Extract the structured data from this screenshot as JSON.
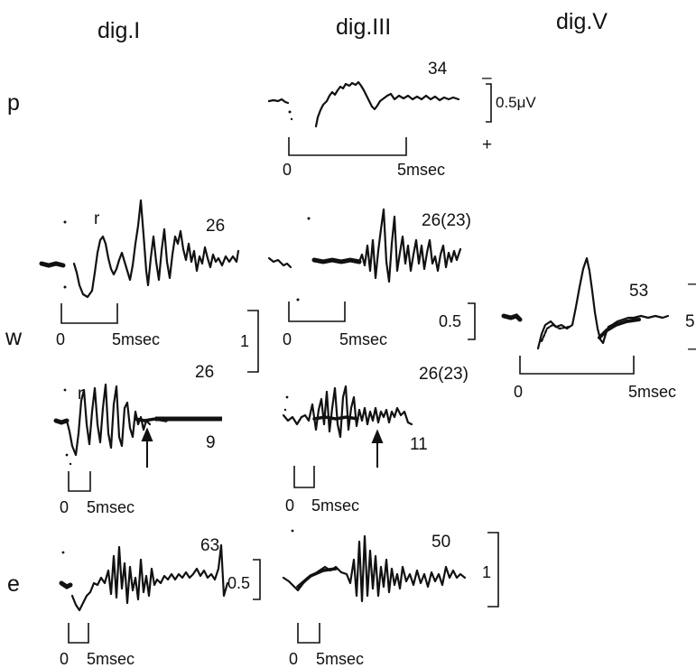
{
  "columns": [
    "dig.I",
    "dig.III",
    "dig.V"
  ],
  "rows": [
    "p",
    "w",
    "e"
  ],
  "p": {
    "trace_number": "34",
    "polarity_minus": "–",
    "polarity_plus": "+",
    "amplitude_calibration": "0.5μV",
    "time_zero": "0",
    "time_scale": "5msec"
  },
  "w_dig1_upper": {
    "number": "26",
    "peak_label": "r",
    "time_zero": "0",
    "time_scale": "5msec"
  },
  "w_dig3_upper": {
    "number": "26(23)",
    "time_zero": "0",
    "time_scale": "5msec"
  },
  "w_amplitude_calibration": "1",
  "w_dig3_amplitude_calibration": "0.5",
  "w_dig5": {
    "number": "53",
    "calibration_value": "5",
    "time_zero": "0",
    "time_scale": "5msec"
  },
  "w_dig1_lower": {
    "number": "26",
    "peak_label": "r",
    "end_number": "9",
    "time_zero": "0",
    "time_scale": "5msec"
  },
  "w_dig3_lower": {
    "number": "26(23)",
    "end_number": "11",
    "time_zero": "0",
    "time_scale": "5msec"
  },
  "e_dig1": {
    "number": "63",
    "amplitude_calibration": "0.5",
    "time_zero": "0",
    "time_scale": "5msec"
  },
  "e_dig3": {
    "number": "50",
    "amplitude_calibration": "1",
    "time_zero": "0",
    "time_scale": "5msec"
  }
}
